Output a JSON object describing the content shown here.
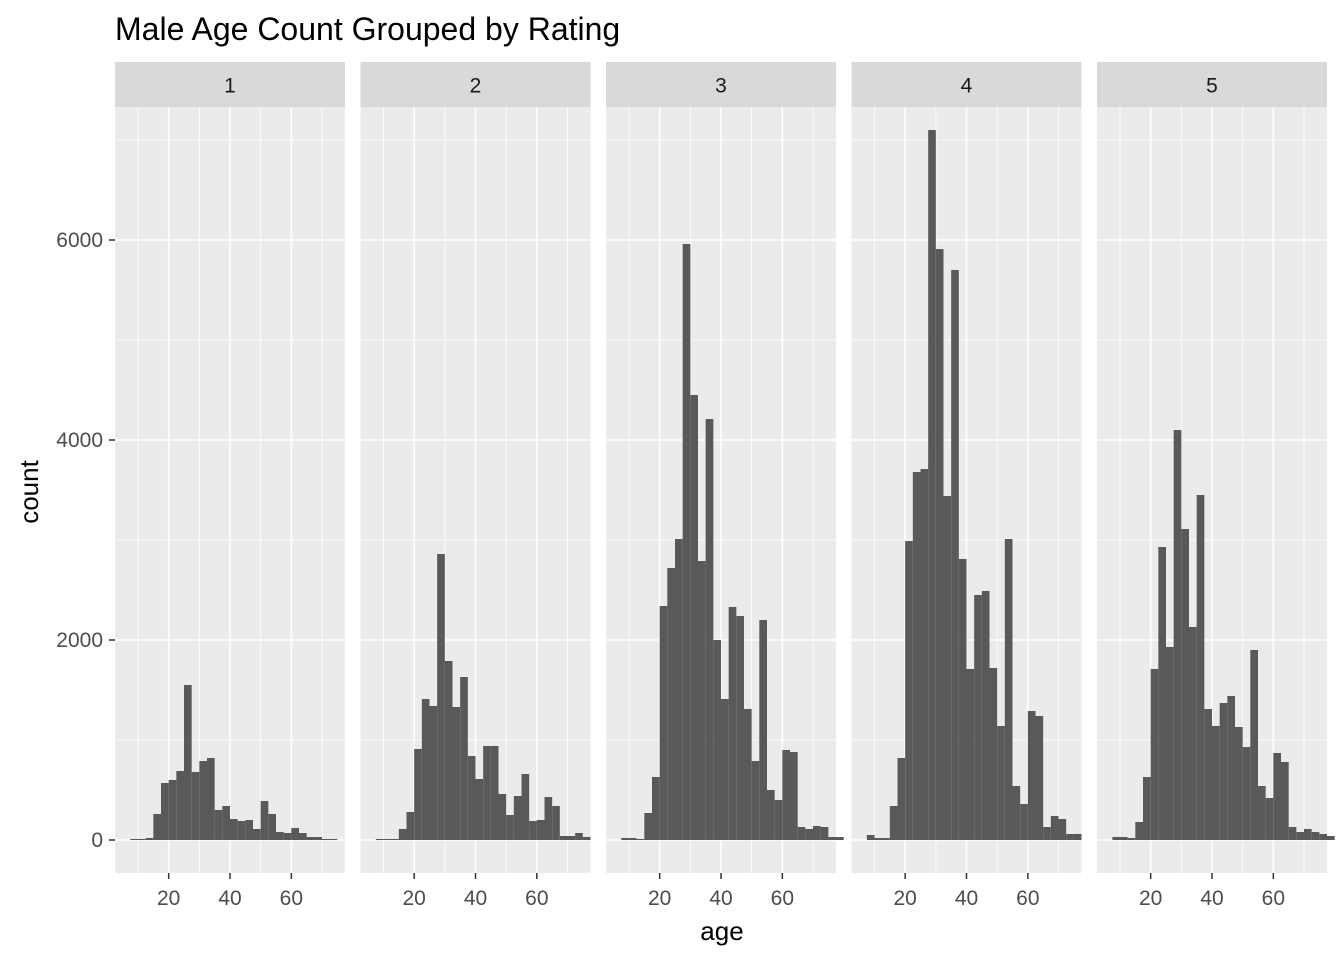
{
  "chart_data": {
    "type": "bar",
    "title": "Male Age Count Grouped by Rating",
    "xlabel": "age",
    "ylabel": "count",
    "xlim": [
      2.5,
      77.5
    ],
    "ylim": [
      -330,
      7330
    ],
    "x_ticks": [
      20,
      40,
      60
    ],
    "y_ticks": [
      0,
      2000,
      4000,
      6000
    ],
    "bin_start": 5,
    "bin_width": 2.5,
    "grid": true,
    "colors": {
      "bar": "#595959",
      "panel_bg": "#ebebeb",
      "grid": "#ffffff",
      "strip_bg": "#d9d9d9"
    },
    "panels": [
      {
        "label": "1",
        "counts": [
          0,
          10,
          10,
          20,
          260,
          570,
          600,
          690,
          1550,
          680,
          790,
          820,
          300,
          340,
          210,
          190,
          200,
          110,
          390,
          260,
          80,
          70,
          120,
          70,
          30,
          30,
          10,
          10,
          0,
          0
        ]
      },
      {
        "label": "2",
        "counts": [
          0,
          10,
          10,
          10,
          110,
          280,
          910,
          1410,
          1340,
          2860,
          1790,
          1330,
          1630,
          840,
          610,
          940,
          940,
          460,
          250,
          440,
          660,
          190,
          200,
          430,
          340,
          40,
          40,
          70,
          30,
          0
        ]
      },
      {
        "label": "3",
        "counts": [
          0,
          20,
          20,
          10,
          270,
          630,
          2340,
          2720,
          3010,
          5960,
          4450,
          2790,
          4210,
          2000,
          1410,
          2330,
          2240,
          1310,
          790,
          2200,
          500,
          400,
          900,
          880,
          130,
          110,
          140,
          130,
          30,
          30
        ]
      },
      {
        "label": "4",
        "counts": [
          0,
          50,
          20,
          20,
          340,
          820,
          2990,
          3680,
          3710,
          7100,
          5910,
          3440,
          5700,
          2810,
          1710,
          2450,
          2490,
          1720,
          1140,
          3010,
          540,
          360,
          1290,
          1240,
          130,
          240,
          210,
          60,
          60,
          0
        ]
      },
      {
        "label": "5",
        "counts": [
          0,
          30,
          30,
          20,
          180,
          630,
          1710,
          2930,
          1930,
          4100,
          3110,
          2130,
          3450,
          1310,
          1140,
          1370,
          1440,
          1130,
          930,
          1900,
          540,
          420,
          870,
          780,
          130,
          80,
          110,
          80,
          60,
          40
        ]
      }
    ]
  }
}
